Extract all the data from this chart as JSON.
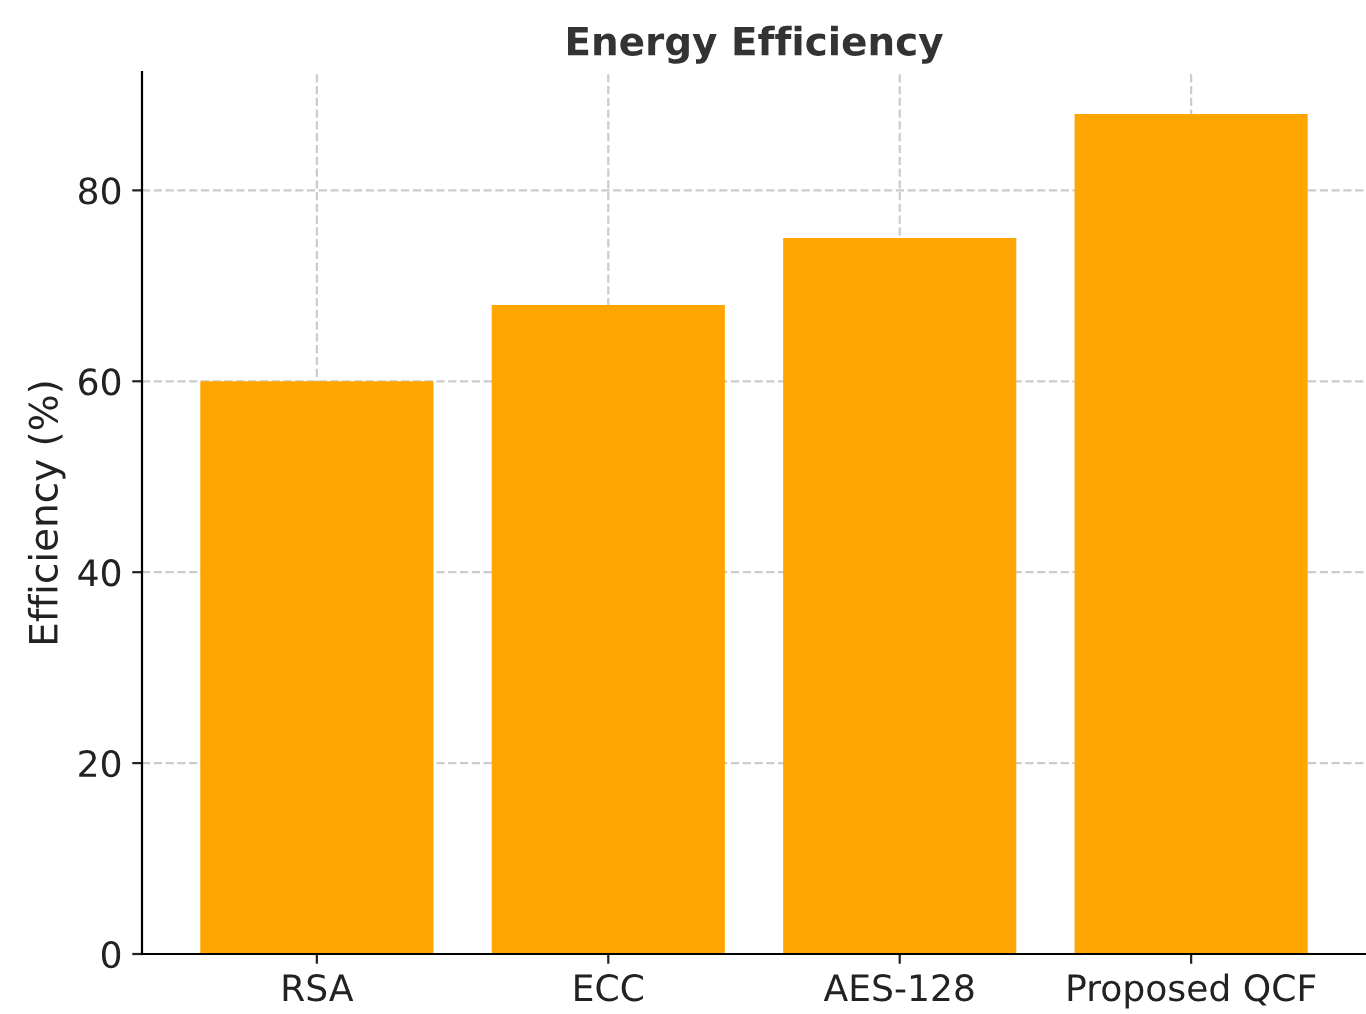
{
  "chart_data": {
    "type": "bar",
    "title": "Energy Efficiency",
    "ylabel": "Efficiency (%)",
    "categories": [
      "RSA",
      "ECC",
      "AES-128",
      "Proposed QCF"
    ],
    "values": [
      60,
      68,
      75,
      88
    ],
    "color": "#ffa500",
    "ylim": [
      0,
      92.4
    ],
    "yticks": [
      0,
      20,
      40,
      60,
      80
    ],
    "grid": true
  }
}
